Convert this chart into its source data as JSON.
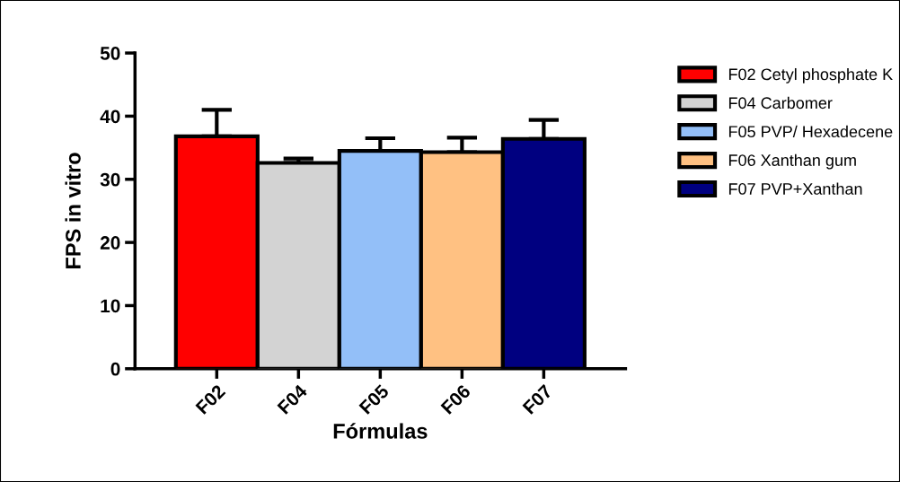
{
  "chart_data": {
    "type": "bar",
    "xlabel": "Fórmulas",
    "ylabel": "FPS in vitro",
    "categories": [
      "F02",
      "F04",
      "F05",
      "F06",
      "F07"
    ],
    "series": [
      {
        "name": "F02 Cetyl phosphate K",
        "color": "#ff0000",
        "values": [
          36.8,
          null,
          null,
          null,
          null
        ],
        "errors": [
          4.2,
          null,
          null,
          null,
          null
        ]
      },
      {
        "name": "F04 Carbomer",
        "color": "#d3d3d3",
        "values": [
          null,
          32.6,
          null,
          null,
          null
        ],
        "errors": [
          null,
          0.7,
          null,
          null,
          null
        ]
      },
      {
        "name": "F05 PVP/ Hexadecene",
        "color": "#93bff8",
        "values": [
          null,
          null,
          34.5,
          null,
          null
        ],
        "errors": [
          null,
          null,
          2.0,
          null,
          null
        ]
      },
      {
        "name": "F06 Xanthan gum",
        "color": "#ffc182",
        "values": [
          null,
          null,
          null,
          34.3,
          null
        ],
        "errors": [
          null,
          null,
          null,
          2.3,
          null
        ]
      },
      {
        "name": "F07 PVP+Xanthan",
        "color": "#000080",
        "values": [
          null,
          null,
          null,
          null,
          36.4
        ],
        "errors": [
          null,
          null,
          null,
          null,
          3.0
        ]
      }
    ],
    "ylim": [
      0,
      50
    ],
    "yticks": [
      0,
      10,
      20,
      30,
      40,
      50
    ],
    "grid": false,
    "legend": "right"
  }
}
